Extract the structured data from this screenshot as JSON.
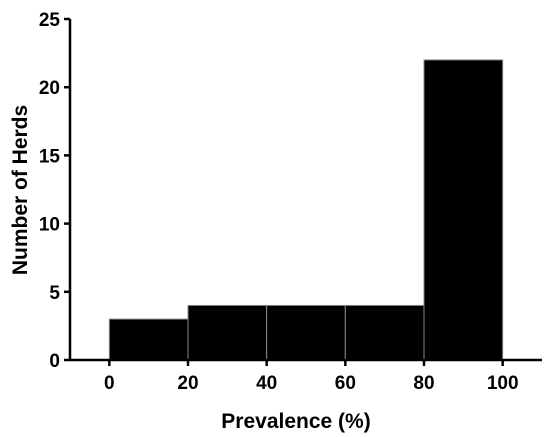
{
  "chart_data": {
    "type": "bar",
    "bins": [
      {
        "x0": 0,
        "x1": 20,
        "value": 3
      },
      {
        "x0": 20,
        "x1": 40,
        "value": 4
      },
      {
        "x0": 40,
        "x1": 60,
        "value": 4
      },
      {
        "x0": 60,
        "x1": 80,
        "value": 4
      },
      {
        "x0": 80,
        "x1": 100,
        "value": 22
      }
    ],
    "xlabel": "Prevalence (%)",
    "ylabel": "Number of Herds",
    "xlim": [
      -10,
      110
    ],
    "ylim": [
      0,
      25
    ],
    "x_ticks": [
      0,
      20,
      40,
      60,
      80,
      100
    ],
    "y_ticks": [
      0,
      5,
      10,
      15,
      20,
      25
    ],
    "x_tick_labels": [
      "0",
      "20",
      "40",
      "60",
      "80",
      "100"
    ],
    "y_tick_labels": [
      "0",
      "5",
      "10",
      "15",
      "20",
      "25"
    ],
    "grid": false,
    "bar_color": "#000000"
  }
}
